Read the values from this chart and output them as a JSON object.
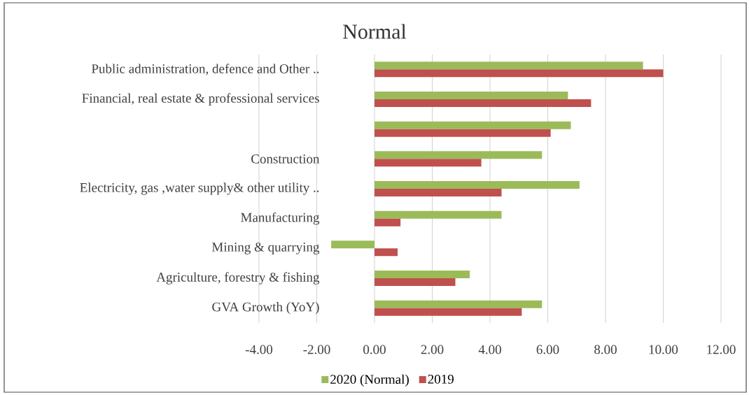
{
  "chart_data": {
    "type": "bar",
    "orientation": "horizontal",
    "title": "Normal",
    "categories": [
      "Public administration, defence and Other ..",
      "Financial, real estate & professional services",
      null,
      "Construction",
      "Electricity, gas ,water supply& other utility ..",
      "Manufacturing",
      "Mining & quarrying",
      "Agriculture, forestry & fishing",
      "GVA Growth (YoY)"
    ],
    "series": [
      {
        "name": "2020 (Normal)",
        "color": "#9bbb59",
        "values": [
          9.3,
          6.7,
          6.8,
          5.8,
          7.1,
          4.4,
          -1.5,
          3.3,
          5.8
        ]
      },
      {
        "name": "2019",
        "color": "#c0504d",
        "values": [
          10.0,
          7.5,
          6.1,
          3.7,
          4.4,
          0.9,
          0.8,
          2.8,
          5.1
        ]
      }
    ],
    "xlim": [
      -4,
      12
    ],
    "xticks": [
      {
        "value": -4,
        "label": "-4.00"
      },
      {
        "value": -2,
        "label": "-2.00"
      },
      {
        "value": 0,
        "label": "0.00"
      },
      {
        "value": 2,
        "label": "2.00"
      },
      {
        "value": 4,
        "label": "4.00"
      },
      {
        "value": 6,
        "label": "6.00"
      },
      {
        "value": 8,
        "label": "8.00"
      },
      {
        "value": 10,
        "label": "10.00"
      },
      {
        "value": 12,
        "label": "12.00"
      }
    ],
    "grid": "x",
    "legend": "bottom"
  }
}
